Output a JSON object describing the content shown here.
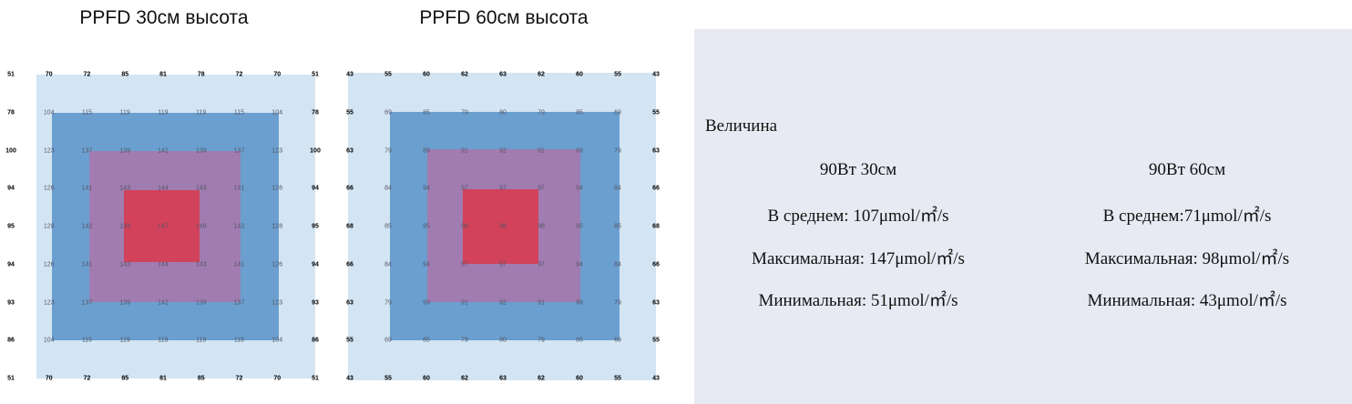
{
  "panels": [
    {
      "title": "PPFD 30см высота",
      "grid": [
        [
          51,
          70,
          72,
          85,
          81,
          78,
          72,
          70,
          51
        ],
        [
          78,
          104,
          115,
          119,
          119,
          119,
          115,
          104,
          78
        ],
        [
          100,
          123,
          137,
          139,
          142,
          139,
          137,
          123,
          100
        ],
        [
          94,
          126,
          141,
          143,
          144,
          143,
          141,
          126,
          94
        ],
        [
          95,
          128,
          142,
          146,
          147,
          146,
          142,
          128,
          95
        ],
        [
          94,
          126,
          141,
          143,
          144,
          143,
          141,
          126,
          94
        ],
        [
          93,
          123,
          137,
          139,
          142,
          139,
          137,
          123,
          93
        ],
        [
          86,
          104,
          115,
          119,
          119,
          119,
          115,
          104,
          86
        ],
        [
          51,
          70,
          72,
          85,
          81,
          85,
          72,
          70,
          51
        ]
      ]
    },
    {
      "title": "PPFD 60см высота",
      "grid": [
        [
          43,
          55,
          60,
          62,
          63,
          62,
          60,
          55,
          43
        ],
        [
          55,
          69,
          85,
          79,
          80,
          79,
          85,
          69,
          55
        ],
        [
          63,
          79,
          89,
          91,
          92,
          91,
          89,
          79,
          63
        ],
        [
          66,
          84,
          94,
          97,
          97,
          97,
          94,
          84,
          66
        ],
        [
          68,
          85,
          95,
          98,
          98,
          98,
          95,
          85,
          68
        ],
        [
          66,
          84,
          94,
          97,
          97,
          97,
          94,
          84,
          66
        ],
        [
          63,
          79,
          99,
          91,
          92,
          91,
          99,
          79,
          63
        ],
        [
          55,
          69,
          85,
          79,
          80,
          79,
          85,
          69,
          55
        ],
        [
          43,
          55,
          60,
          62,
          63,
          62,
          60,
          55,
          43
        ]
      ]
    }
  ],
  "summary": {
    "label": "Величина",
    "columns": [
      {
        "header": "90Вт 30см",
        "average": "В среднем: 107μmol/㎡/s",
        "max": "Максимальная: 147μmol/㎡/s",
        "min": "Минимальная: 51μmol/㎡/s"
      },
      {
        "header": "90Вт 60см",
        "average": "В среднем:71μmol/㎡/s",
        "max": "Максимальная: 98μmol/㎡/s",
        "min": "Минимальная: 43μmol/㎡/s"
      }
    ]
  }
}
